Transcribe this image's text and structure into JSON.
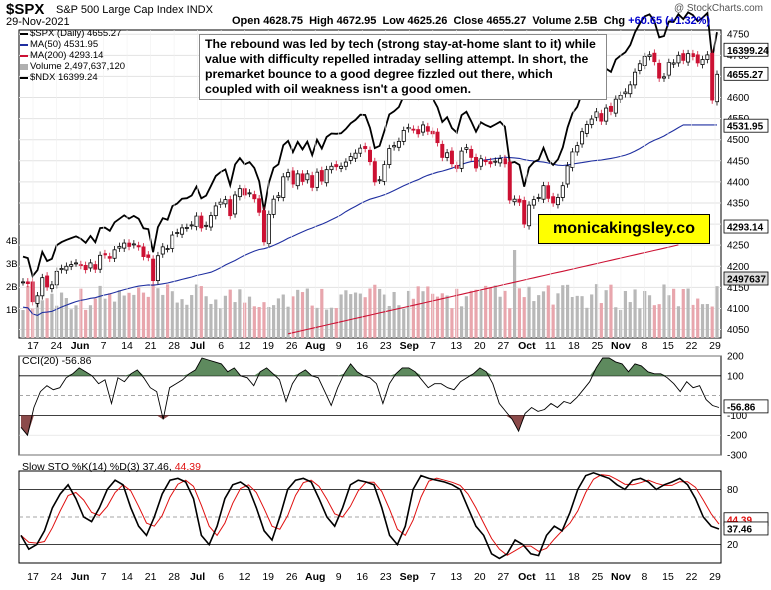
{
  "header": {
    "ticker": "$SPX",
    "name": "S&P 500 Large Cap Index INDX",
    "date": "29-Nov-2021",
    "open_label": "Open",
    "open": "4628.75",
    "high_label": "High",
    "high": "4672.95",
    "low_label": "Low",
    "low": "4625.26",
    "close_label": "Close",
    "close": "4655.27",
    "volume_label": "Volume",
    "volume": "2.5B",
    "chg_label": "Chg",
    "chg": "+60.65 (+1.32%)",
    "watermark": "@ StockCharts.com"
  },
  "legend": [
    {
      "label": "$SPX (Daily) 4655.27",
      "color": "#000000"
    },
    {
      "label": "MA(50) 4531.95",
      "color": "#1f2fa0"
    },
    {
      "label": "MA(200) 4293.14",
      "color": "#cc1133"
    },
    {
      "label": "Volume 2,497,637,120",
      "color": "#b0b0b0"
    },
    {
      "label": "$NDX 16399.24",
      "color": "#000000"
    }
  ],
  "annotation": "The rebound was led by tech (strong stay-at-home slant to it) while value with difficulty repelled intraday selling attempt. In short, the premarket bounce to a good degree fizzled out there, which coupled with oil weakness isn't a good omen.",
  "brand": "monicakingsley.co",
  "price_badges": {
    "ndx": "16399.24",
    "spx": "4655.27",
    "ma50": "4531.95",
    "ma200": "4293.14",
    "volume": "2497637"
  },
  "cci_title": "CCI(20) -56.86",
  "cci_badge": "-56.86",
  "sto_title_main": "Slow STO %K(14) %D(3) 37.46,",
  "sto_title_d": "44.39",
  "sto_badges": [
    "44.39",
    "37.46"
  ],
  "colors": {
    "up": "#000000",
    "down": "#cc1133",
    "ma50": "#1f2fa0",
    "ma200": "#cc1133",
    "cci_pos": "#5e8a5e",
    "cci_neg": "#8b4a4a",
    "sto_d": "#e01010"
  },
  "chart_data": [
    {
      "type": "candlestick",
      "title": "$SPX S&P 500 Large Cap Index INDX",
      "y_ticks": [
        4050,
        4100,
        4150,
        4200,
        4250,
        4300,
        4350,
        4400,
        4450,
        4500,
        4550,
        4600,
        4650,
        4700,
        4750
      ],
      "ylim": [
        4030,
        4760
      ],
      "volume_ticks": [
        "1B",
        "2B",
        "3B",
        "4B"
      ],
      "x_ticks": [
        "17",
        "24",
        "Jun",
        "7",
        "14",
        "21",
        "28",
        "Jul",
        "6",
        "12",
        "19",
        "26",
        "Aug",
        "9",
        "16",
        "23",
        "Sep",
        "7",
        "13",
        "20",
        "27",
        "Oct",
        "11",
        "18",
        "25",
        "Nov",
        "8",
        "15",
        "22",
        "29"
      ],
      "spx_close": [
        4163,
        4159,
        4116,
        4130,
        4173,
        4151,
        4156,
        4188,
        4195,
        4200,
        4204,
        4208,
        4202,
        4192,
        4208,
        4193,
        4226,
        4227,
        4219,
        4239,
        4247,
        4255,
        4247,
        4253,
        4246,
        4223,
        4221,
        4166,
        4225,
        4246,
        4242,
        4274,
        4280,
        4291,
        4292,
        4298,
        4319,
        4291,
        4297,
        4320,
        4343,
        4352,
        4358,
        4320,
        4369,
        4384,
        4369,
        4374,
        4360,
        4328,
        4258,
        4323,
        4359,
        4367,
        4412,
        4422,
        4395,
        4419,
        4401,
        4419,
        4387,
        4423,
        4402,
        4429,
        4437,
        4436,
        4437,
        4447,
        4460,
        4468,
        4480,
        4479,
        4448,
        4400,
        4405,
        4441,
        4479,
        4486,
        4496,
        4522,
        4529,
        4524,
        4514,
        4535,
        4520,
        4514,
        4493,
        4458,
        4469,
        4443,
        4432,
        4473,
        4481,
        4458,
        4433,
        4455,
        4448,
        4443,
        4449,
        4455,
        4443,
        4357,
        4359,
        4352,
        4300,
        4345,
        4358,
        4363,
        4391,
        4361,
        4350,
        4363,
        4391,
        4438,
        4471,
        4486,
        4519,
        4536,
        4549,
        4566,
        4544,
        4575,
        4567,
        4596,
        4605,
        4613,
        4630,
        4660,
        4680,
        4697,
        4701,
        4685,
        4646,
        4649,
        4683,
        4682,
        4700,
        4688,
        4704,
        4697,
        4682,
        4690,
        4701,
        4594,
        4655
      ]
    },
    {
      "type": "line",
      "title": "CCI(20) -56.86",
      "y_ticks": [
        -300,
        -200,
        -100,
        100,
        200
      ],
      "ylim": [
        -300,
        200
      ],
      "cci": [
        -160,
        -200,
        -60,
        20,
        50,
        30,
        40,
        90,
        110,
        140,
        120,
        100,
        60,
        80,
        -40,
        90,
        70,
        110,
        130,
        90,
        40,
        20,
        -120,
        40,
        60,
        80,
        110,
        130,
        190,
        180,
        170,
        160,
        120,
        140,
        100,
        90,
        50,
        120,
        140,
        110,
        80,
        -30,
        60,
        110,
        130,
        100,
        90,
        20,
        -50,
        40,
        110,
        160,
        120,
        100,
        90,
        60,
        -40,
        60,
        110,
        140,
        140,
        120,
        80,
        40,
        60,
        60,
        40,
        30,
        70,
        90,
        110,
        140,
        120,
        60,
        -40,
        -80,
        -120,
        -180,
        -90,
        -60,
        -80,
        -70,
        -40,
        -60,
        -30,
        -40,
        -10,
        30,
        70,
        140,
        190,
        190,
        170,
        160,
        120,
        160,
        150,
        120,
        110,
        110,
        90,
        60,
        20,
        70,
        40,
        50,
        -20,
        -50,
        -60
      ]
    },
    {
      "type": "line",
      "title": "Slow STO %K(14) %D(3)",
      "y_ticks": [
        20,
        50,
        80
      ],
      "ylim": [
        0,
        100
      ],
      "stoch_k": [
        30,
        15,
        20,
        35,
        60,
        75,
        85,
        70,
        50,
        45,
        60,
        80,
        90,
        85,
        60,
        40,
        30,
        50,
        75,
        90,
        92,
        88,
        70,
        30,
        20,
        40,
        70,
        85,
        88,
        82,
        60,
        35,
        25,
        50,
        80,
        90,
        92,
        88,
        70,
        50,
        40,
        60,
        85,
        90,
        88,
        85,
        60,
        30,
        20,
        40,
        80,
        95,
        92,
        90,
        88,
        85,
        80,
        60,
        40,
        30,
        10,
        5,
        10,
        25,
        20,
        10,
        8,
        30,
        40,
        35,
        55,
        80,
        95,
        98,
        95,
        92,
        85,
        80,
        90,
        92,
        88,
        80,
        85,
        88,
        92,
        85,
        70,
        50,
        40,
        37
      ]
    }
  ]
}
